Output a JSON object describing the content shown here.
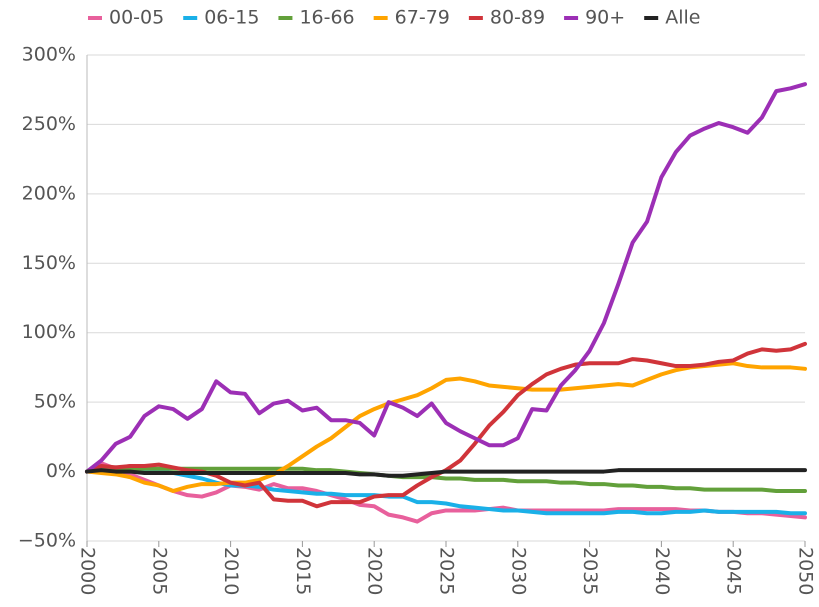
{
  "chart_data": {
    "type": "line",
    "x": [
      2000,
      2001,
      2002,
      2003,
      2004,
      2005,
      2006,
      2007,
      2008,
      2009,
      2010,
      2011,
      2012,
      2013,
      2014,
      2015,
      2016,
      2017,
      2018,
      2019,
      2020,
      2021,
      2022,
      2023,
      2024,
      2025,
      2026,
      2027,
      2028,
      2029,
      2030,
      2031,
      2032,
      2033,
      2034,
      2035,
      2036,
      2037,
      2038,
      2039,
      2040,
      2041,
      2042,
      2043,
      2044,
      2045,
      2046,
      2047,
      2048,
      2049,
      2050
    ],
    "series": [
      {
        "name": "00-05",
        "color": "#e8609c",
        "values": [
          0,
          6,
          2,
          -2,
          -6,
          -10,
          -14,
          -17,
          -18,
          -15,
          -10,
          -11,
          -13,
          -9,
          -12,
          -12,
          -14,
          -17,
          -20,
          -24,
          -25,
          -31,
          -33,
          -36,
          -30,
          -28,
          -28,
          -28,
          -27,
          -26,
          -28,
          -28,
          -28,
          -28,
          -28,
          -28,
          -28,
          -27,
          -27,
          -27,
          -27,
          -27,
          -28,
          -28,
          -29,
          -29,
          -30,
          -30,
          -31,
          -32,
          -33
        ]
      },
      {
        "name": "06-15",
        "color": "#1ab0e8",
        "values": [
          0,
          2,
          3,
          2,
          1,
          0,
          -1,
          -3,
          -5,
          -8,
          -10,
          -10,
          -11,
          -13,
          -14,
          -15,
          -16,
          -16,
          -17,
          -17,
          -17,
          -18,
          -18,
          -22,
          -22,
          -23,
          -25,
          -26,
          -27,
          -28,
          -28,
          -29,
          -30,
          -30,
          -30,
          -30,
          -30,
          -29,
          -29,
          -30,
          -30,
          -29,
          -29,
          -28,
          -29,
          -29,
          -29,
          -29,
          -29,
          -30,
          -30
        ]
      },
      {
        "name": "16-66",
        "color": "#62a03a",
        "values": [
          0,
          1,
          2,
          2,
          2,
          2,
          2,
          2,
          2,
          2,
          2,
          2,
          2,
          2,
          2,
          2,
          1,
          1,
          0,
          -1,
          -2,
          -3,
          -4,
          -4,
          -4,
          -5,
          -5,
          -6,
          -6,
          -6,
          -7,
          -7,
          -7,
          -8,
          -8,
          -9,
          -9,
          -10,
          -10,
          -11,
          -11,
          -12,
          -12,
          -13,
          -13,
          -13,
          -13,
          -13,
          -14,
          -14,
          -14
        ]
      },
      {
        "name": "67-79",
        "color": "#ffa400",
        "values": [
          0,
          -1,
          -2,
          -4,
          -8,
          -10,
          -14,
          -11,
          -9,
          -9,
          -8,
          -8,
          -6,
          -2,
          4,
          11,
          18,
          24,
          32,
          40,
          45,
          49,
          52,
          55,
          60,
          66,
          67,
          65,
          62,
          61,
          60,
          59,
          59,
          59,
          60,
          61,
          62,
          63,
          62,
          66,
          70,
          73,
          75,
          76,
          77,
          78,
          76,
          75,
          75,
          75,
          74
        ]
      },
      {
        "name": "80-89",
        "color": "#d0343a",
        "values": [
          0,
          4,
          3,
          4,
          4,
          5,
          3,
          1,
          0,
          -3,
          -8,
          -10,
          -8,
          -20,
          -21,
          -21,
          -25,
          -22,
          -22,
          -22,
          -18,
          -17,
          -17,
          -10,
          -4,
          1,
          8,
          20,
          33,
          43,
          55,
          63,
          70,
          74,
          77,
          78,
          78,
          78,
          81,
          80,
          78,
          76,
          76,
          77,
          79,
          80,
          85,
          88,
          87,
          88,
          92
        ]
      },
      {
        "name": "90+",
        "color": "#9c2fb5",
        "values": [
          0,
          8,
          20,
          25,
          40,
          47,
          45,
          38,
          45,
          65,
          57,
          56,
          42,
          49,
          51,
          44,
          46,
          37,
          37,
          35,
          26,
          50,
          46,
          40,
          49,
          35,
          29,
          24,
          19,
          19,
          24,
          45,
          44,
          62,
          73,
          87,
          107,
          135,
          165,
          180,
          212,
          230,
          242,
          247,
          251,
          248,
          244,
          255,
          274,
          276,
          279
        ]
      },
      {
        "name": "Alle",
        "color": "#222222",
        "values": [
          0,
          1,
          0,
          0,
          -1,
          -1,
          -1,
          -1,
          -1,
          -1,
          -1,
          -1,
          -1,
          -1,
          -1,
          -1,
          -1,
          -1,
          -1,
          -2,
          -2,
          -3,
          -3,
          -2,
          -1,
          0,
          0,
          0,
          0,
          0,
          0,
          0,
          0,
          0,
          0,
          0,
          0,
          1,
          1,
          1,
          1,
          1,
          1,
          1,
          1,
          1,
          1,
          1,
          1,
          1,
          1
        ]
      }
    ],
    "xlim": [
      2000,
      2050
    ],
    "xticks": [
      2000,
      2005,
      2010,
      2015,
      2020,
      2025,
      2030,
      2035,
      2040,
      2045,
      2050
    ],
    "ylim": [
      -50,
      300
    ],
    "yticks": [
      {
        "value": -50,
        "label": "−50%"
      },
      {
        "value": 0,
        "label": "0%"
      },
      {
        "value": 50,
        "label": "50%"
      },
      {
        "value": 100,
        "label": "100%"
      },
      {
        "value": 150,
        "label": "150%"
      },
      {
        "value": 200,
        "label": "200%"
      },
      {
        "value": 250,
        "label": "250%"
      },
      {
        "value": 300,
        "label": "300%"
      }
    ],
    "grid": true
  }
}
